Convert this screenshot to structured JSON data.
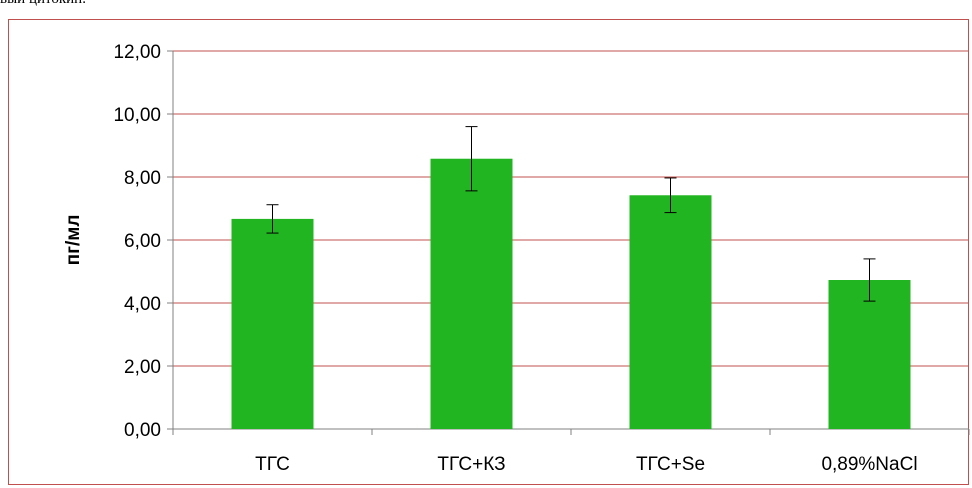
{
  "caption": "вый цитокин.",
  "chart_data": {
    "type": "bar",
    "ylabel": "пг/мл",
    "ylim": [
      0,
      12
    ],
    "yticks": [
      "0,00",
      "2,00",
      "4,00",
      "6,00",
      "8,00",
      "10,00",
      "12,00"
    ],
    "categories": [
      "ТГС",
      "ТГС+КЗ",
      "ТГС+Se",
      "0,89%NaCl"
    ],
    "values": [
      6.67,
      8.58,
      7.42,
      4.73
    ],
    "errors": [
      0.45,
      1.02,
      0.55,
      0.67
    ],
    "grid": true,
    "legend": "none",
    "colors": {
      "bar": "#22b522",
      "grid": "#c0504d",
      "axis": "#808080",
      "error": "#000000"
    }
  }
}
